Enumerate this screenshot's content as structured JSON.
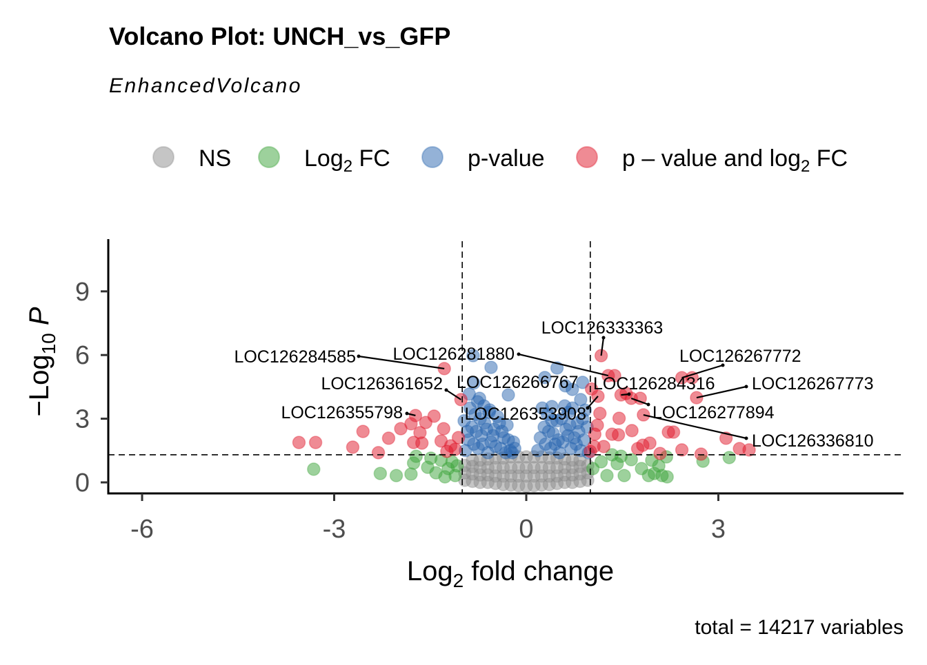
{
  "chart_data": {
    "type": "scatter",
    "title": "Volcano Plot: UNCH_vs_GFP",
    "subtitle": "EnhancedVolcano",
    "xlabel": {
      "main": "Log",
      "sub": "2",
      "rest": " fold change"
    },
    "ylabel": {
      "prefix": "−Log",
      "sub": "10",
      "italic": " P"
    },
    "caption": "total = 14217 variables",
    "xlim": [
      -6.5,
      5.9
    ],
    "ylim": [
      -0.5,
      11.4
    ],
    "x_ticks": [
      "-6",
      "-3",
      "0",
      "3"
    ],
    "x_tick_values": [
      -6,
      -3,
      0,
      3
    ],
    "y_ticks": [
      "0",
      "3",
      "6",
      "9"
    ],
    "y_tick_values": [
      0,
      3,
      6,
      9
    ],
    "thresholds": {
      "log2fc": [
        -1,
        1
      ],
      "neg_log10_p": 1.3
    },
    "grid": false,
    "legend_position": "top",
    "legend": [
      {
        "key": "ns",
        "label": "NS",
        "color": "#8c8c8c"
      },
      {
        "key": "fc",
        "label": "Log",
        "sub": "2",
        "rest": " FC",
        "color": "#3ca33a"
      },
      {
        "key": "p",
        "label": "p-value",
        "color": "#2a66b0"
      },
      {
        "key": "both",
        "label": "p – value and log",
        "sub": "2",
        "rest": " FC",
        "color": "#e0182a"
      }
    ],
    "series": {
      "ns": [
        [
          -0.96,
          0.1
        ],
        [
          -0.96,
          0.45
        ],
        [
          -0.96,
          0.8
        ],
        [
          -0.84,
          0.05
        ],
        [
          -0.84,
          0.4
        ],
        [
          -0.84,
          0.75
        ],
        [
          -0.84,
          1.05
        ],
        [
          -0.72,
          0.0
        ],
        [
          -0.72,
          0.35
        ],
        [
          -0.72,
          0.7
        ],
        [
          -0.72,
          1.05
        ],
        [
          -0.6,
          0.0
        ],
        [
          -0.6,
          0.35
        ],
        [
          -0.6,
          0.7
        ],
        [
          -0.6,
          1.1
        ],
        [
          -0.48,
          -0.05
        ],
        [
          -0.48,
          0.3
        ],
        [
          -0.48,
          0.7
        ],
        [
          -0.48,
          1.15
        ],
        [
          -0.36,
          -0.1
        ],
        [
          -0.36,
          0.3
        ],
        [
          -0.36,
          0.7
        ],
        [
          -0.36,
          1.15
        ],
        [
          -0.24,
          -0.12
        ],
        [
          -0.24,
          0.3
        ],
        [
          -0.24,
          0.7
        ],
        [
          -0.24,
          1.2
        ],
        [
          -0.12,
          -0.15
        ],
        [
          -0.12,
          0.3
        ],
        [
          -0.12,
          0.7
        ],
        [
          -0.12,
          1.2
        ],
        [
          0,
          -0.18
        ],
        [
          0,
          0.3
        ],
        [
          0,
          0.7
        ],
        [
          0,
          1.2
        ],
        [
          0.12,
          -0.15
        ],
        [
          0.12,
          0.3
        ],
        [
          0.12,
          0.7
        ],
        [
          0.12,
          1.2
        ],
        [
          0.24,
          -0.12
        ],
        [
          0.24,
          0.3
        ],
        [
          0.24,
          0.7
        ],
        [
          0.24,
          1.2
        ],
        [
          0.36,
          -0.1
        ],
        [
          0.36,
          0.3
        ],
        [
          0.36,
          0.7
        ],
        [
          0.36,
          1.15
        ],
        [
          0.48,
          -0.05
        ],
        [
          0.48,
          0.3
        ],
        [
          0.48,
          0.7
        ],
        [
          0.48,
          1.15
        ],
        [
          0.6,
          0.0
        ],
        [
          0.6,
          0.35
        ],
        [
          0.6,
          0.7
        ],
        [
          0.6,
          1.1
        ],
        [
          0.72,
          0.0
        ],
        [
          0.72,
          0.35
        ],
        [
          0.72,
          0.7
        ],
        [
          0.72,
          1.05
        ],
        [
          0.84,
          0.05
        ],
        [
          0.84,
          0.4
        ],
        [
          0.84,
          0.75
        ],
        [
          0.84,
          1.05
        ],
        [
          0.96,
          0.1
        ],
        [
          0.96,
          0.45
        ],
        [
          0.96,
          0.8
        ]
      ],
      "fc": [
        [
          -3.32,
          0.62
        ],
        [
          -2.28,
          0.42
        ],
        [
          -2.03,
          0.32
        ],
        [
          -1.8,
          0.39
        ],
        [
          -1.76,
          0.91
        ],
        [
          -1.54,
          0.71
        ],
        [
          -1.41,
          0.45
        ],
        [
          -1.33,
          1.04
        ],
        [
          -1.22,
          0.65
        ],
        [
          -1.11,
          0.32
        ],
        [
          -1.16,
          0.97
        ],
        [
          -1.27,
          0.26
        ],
        [
          -1.72,
          1.23
        ],
        [
          -1.49,
          1.14
        ],
        [
          -1.08,
          0.78
        ],
        [
          1.04,
          0.65
        ],
        [
          1.26,
          0.32
        ],
        [
          1.42,
          0.88
        ],
        [
          1.53,
          0.32
        ],
        [
          1.64,
          1.07
        ],
        [
          1.8,
          0.65
        ],
        [
          1.91,
          0.32
        ],
        [
          2.0,
          0.42
        ],
        [
          2.07,
          0.78
        ],
        [
          2.2,
          0.26
        ],
        [
          2.19,
          1.2
        ],
        [
          2.76,
          1.0
        ],
        [
          3.17,
          1.17
        ],
        [
          1.48,
          1.23
        ],
        [
          1.17,
          0.97
        ],
        [
          1.34,
          1.3
        ],
        [
          2.12,
          0.32
        ],
        [
          1.96,
          1.04
        ]
      ],
      "p": [
        [
          -0.83,
          5.97
        ],
        [
          -0.55,
          5.42
        ],
        [
          -0.82,
          4.68
        ],
        [
          -0.89,
          4.16
        ],
        [
          -0.73,
          3.96
        ],
        [
          -0.28,
          4.12
        ],
        [
          -0.57,
          3.41
        ],
        [
          0.48,
          5.39
        ],
        [
          0.29,
          4.94
        ],
        [
          0.61,
          4.55
        ],
        [
          0.72,
          4.38
        ],
        [
          0.85,
          3.9
        ],
        [
          0.88,
          4.71
        ],
        [
          0.4,
          3.57
        ],
        [
          -0.95,
          1.5
        ],
        [
          -0.9,
          2.0
        ],
        [
          -0.85,
          2.6
        ],
        [
          -0.8,
          3.2
        ],
        [
          -0.75,
          1.6
        ],
        [
          -0.7,
          2.2
        ],
        [
          -0.65,
          2.8
        ],
        [
          -0.6,
          1.4
        ],
        [
          -0.55,
          1.9
        ],
        [
          -0.5,
          2.5
        ],
        [
          -0.45,
          3.1
        ],
        [
          -0.4,
          1.6
        ],
        [
          -0.35,
          2.1
        ],
        [
          -0.3,
          2.7
        ],
        [
          -0.25,
          1.5
        ],
        [
          -0.2,
          1.9
        ],
        [
          -0.97,
          2.9
        ],
        [
          -0.88,
          3.5
        ],
        [
          -0.78,
          2.4
        ],
        [
          -0.68,
          1.8
        ],
        [
          -0.58,
          3.3
        ],
        [
          -0.48,
          1.7
        ],
        [
          -0.38,
          2.4
        ],
        [
          -0.28,
          2.0
        ],
        [
          -0.22,
          1.4
        ],
        [
          -0.62,
          2.5
        ],
        [
          -0.72,
          3.0
        ],
        [
          -0.82,
          1.8
        ],
        [
          -0.92,
          2.4
        ],
        [
          -0.52,
          2.2
        ],
        [
          -0.42,
          2.8
        ],
        [
          -0.32,
          1.4
        ],
        [
          -0.18,
          1.6
        ],
        [
          -0.66,
          3.6
        ],
        [
          -0.76,
          3.8
        ],
        [
          0.18,
          1.5
        ],
        [
          0.22,
          2.1
        ],
        [
          0.28,
          2.6
        ],
        [
          0.33,
          3.2
        ],
        [
          0.38,
          1.6
        ],
        [
          0.42,
          2.3
        ],
        [
          0.48,
          2.9
        ],
        [
          0.52,
          1.4
        ],
        [
          0.57,
          1.9
        ],
        [
          0.62,
          2.5
        ],
        [
          0.66,
          3.3
        ],
        [
          0.7,
          1.6
        ],
        [
          0.75,
          2.1
        ],
        [
          0.8,
          2.8
        ],
        [
          0.85,
          1.5
        ],
        [
          0.9,
          2.0
        ],
        [
          0.95,
          2.6
        ],
        [
          0.97,
          1.4
        ],
        [
          0.25,
          3.5
        ],
        [
          0.35,
          2.4
        ],
        [
          0.45,
          1.8
        ],
        [
          0.55,
          3.0
        ],
        [
          0.6,
          3.6
        ],
        [
          0.65,
          2.2
        ],
        [
          0.72,
          3.5
        ],
        [
          0.78,
          1.8
        ],
        [
          0.88,
          3.0
        ],
        [
          0.92,
          3.4
        ],
        [
          0.3,
          1.8
        ],
        [
          0.4,
          2.9
        ],
        [
          0.5,
          2.0
        ],
        [
          0.82,
          2.4
        ],
        [
          0.68,
          2.7
        ]
      ],
      "both": [
        [
          -3.55,
          1.88
        ],
        [
          -3.29,
          1.88
        ],
        [
          -2.71,
          1.66
        ],
        [
          -2.55,
          2.4
        ],
        [
          -2.31,
          1.4
        ],
        [
          -2.15,
          2.08
        ],
        [
          -1.96,
          2.53
        ],
        [
          -1.8,
          2.76
        ],
        [
          -1.76,
          1.88
        ],
        [
          -1.66,
          2.34
        ],
        [
          -1.57,
          2.82
        ],
        [
          -1.44,
          3.12
        ],
        [
          -1.29,
          2.53
        ],
        [
          -1.33,
          1.95
        ],
        [
          -1.63,
          1.85
        ],
        [
          -1.18,
          1.72
        ],
        [
          -1.11,
          1.56
        ],
        [
          -1.24,
          1.46
        ],
        [
          -1.06,
          2.11
        ],
        [
          1.38,
          5.03
        ],
        [
          1.56,
          4.19
        ],
        [
          1.78,
          3.96
        ],
        [
          1.45,
          3.02
        ],
        [
          1.15,
          3.25
        ],
        [
          1.11,
          2.69
        ],
        [
          1.07,
          2.27
        ],
        [
          1.34,
          2.27
        ],
        [
          1.44,
          2.24
        ],
        [
          1.65,
          2.44
        ],
        [
          1.74,
          1.59
        ],
        [
          1.82,
          1.75
        ],
        [
          1.93,
          1.85
        ],
        [
          2.09,
          1.36
        ],
        [
          2.22,
          2.37
        ],
        [
          2.3,
          2.37
        ],
        [
          2.43,
          1.53
        ],
        [
          2.73,
          1.33
        ],
        [
          3.12,
          2.08
        ],
        [
          3.33,
          1.59
        ],
        [
          3.48,
          1.53
        ],
        [
          2.59,
          4.93
        ],
        [
          1.06,
          1.69
        ],
        [
          1.21,
          1.69
        ],
        [
          1.0,
          1.46
        ]
      ]
    },
    "labelled_genes": [
      {
        "gene": "LOC126333363",
        "x": 1.17,
        "y": 5.97
      },
      {
        "gene": "LOC126284585",
        "x": -1.28,
        "y": 5.36
      },
      {
        "gene": "LOC126281880",
        "x": 1.28,
        "y": 5.03
      },
      {
        "gene": "LOC126266767",
        "x": 1.02,
        "y": 4.4
      },
      {
        "gene": "LOC126284316",
        "x": 1.48,
        "y": 4.12
      },
      {
        "gene": "LOC126267772",
        "x": 2.43,
        "y": 4.93
      },
      {
        "gene": "LOC126267773",
        "x": 2.66,
        "y": 3.99
      },
      {
        "gene": "LOC126277894",
        "x": 1.64,
        "y": 3.96
      },
      {
        "gene": "LOC126336810",
        "x": 1.83,
        "y": 3.18
      },
      {
        "gene": "LOC126361652",
        "x": -1.02,
        "y": 3.9
      },
      {
        "gene": "LOC126355798",
        "x": -1.73,
        "y": 3.15
      },
      {
        "gene": "LOC126353908",
        "x": 1.12,
        "y": 4.06
      }
    ]
  }
}
